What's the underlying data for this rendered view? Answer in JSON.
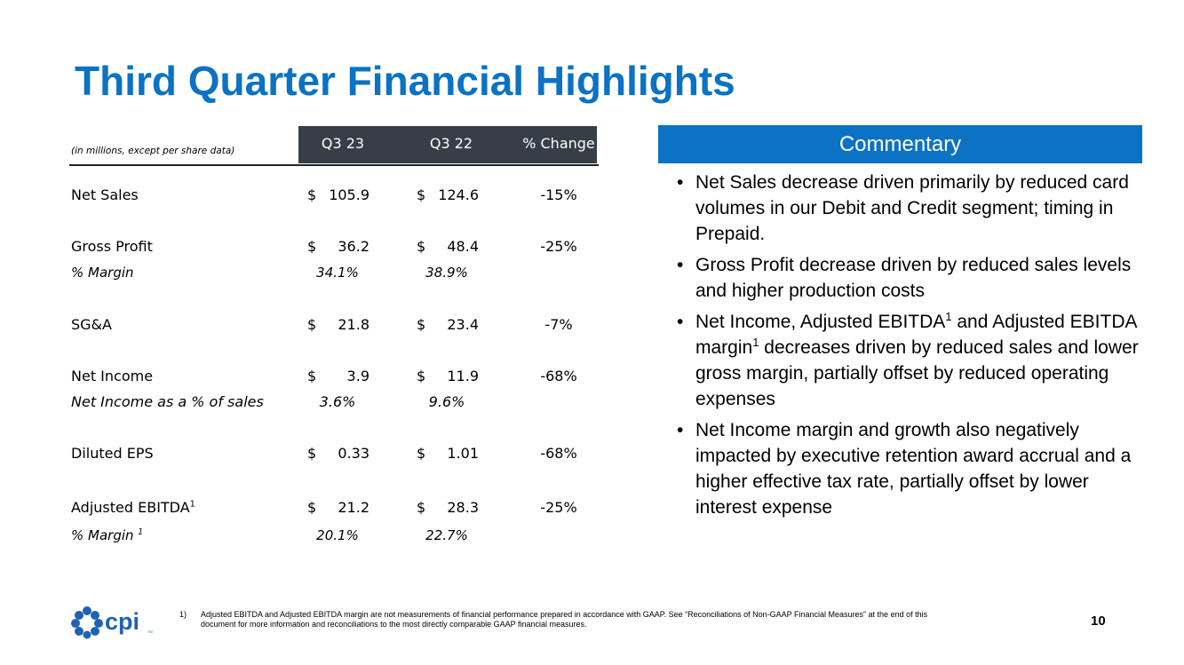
{
  "title": "Third Quarter Financial Highlights",
  "table": {
    "units_note": "(in millions, except per share data)",
    "columns": [
      "Q3 23",
      "Q3 22",
      "% Change"
    ],
    "currency_symbol": "$",
    "rows": {
      "net_sales": {
        "label": "Net Sales",
        "q3_23": "105.9",
        "q3_22": "124.6",
        "change": "-15%"
      },
      "gross_profit": {
        "label": "Gross Profit",
        "q3_23": "36.2",
        "q3_22": "48.4",
        "change": "-25%"
      },
      "gross_margin": {
        "label": "% Margin",
        "q3_23": "34.1%",
        "q3_22": "38.9%"
      },
      "sga": {
        "label": "SG&A",
        "q3_23": "21.8",
        "q3_22": "23.4",
        "change": "-7%"
      },
      "net_income": {
        "label": "Net Income",
        "q3_23": "3.9",
        "q3_22": "11.9",
        "change": "-68%"
      },
      "net_income_pct": {
        "label": "Net Income as a % of sales",
        "q3_23": "3.6%",
        "q3_22": "9.6%"
      },
      "diluted_eps": {
        "label": "Diluted EPS",
        "q3_23": "0.33",
        "q3_22": "1.01",
        "change": "-68%"
      },
      "adj_ebitda": {
        "label": "Adjusted EBITDA",
        "sup": "1",
        "q3_23": "21.2",
        "q3_22": "28.3",
        "change": "-25%"
      },
      "adj_ebitda_margin": {
        "label": "% Margin ",
        "sup": "1",
        "q3_23": "20.1%",
        "q3_22": "22.7%"
      }
    }
  },
  "commentary": {
    "header": "Commentary",
    "bullet_char": "•",
    "b1": "Net Sales decrease driven primarily by reduced card volumes in our Debit and Credit segment; timing in Prepaid.",
    "b2": "Gross Profit decrease driven by reduced sales levels and higher production costs",
    "b3_a": "Net Income, Adjusted EBITDA",
    "b3_sup1": "1",
    "b3_b": " and Adjusted EBITDA margin",
    "b3_sup2": "1",
    "b3_c": " decreases driven by reduced sales and lower gross margin, partially offset by reduced operating expenses",
    "b4": "Net Income margin and growth also negatively impacted by executive retention award accrual and a higher effective tax rate, partially offset by lower interest expense"
  },
  "footer": {
    "logo_text": "cpi",
    "logo_tm": "TM",
    "footnote_num": "1)",
    "footnote_text": "Adjusted EBITDA and Adjusted EBITDA margin are not measurements of financial performance prepared in accordance with GAAP. See “Reconciliations of Non-GAAP Financial Measures” at the end of this document for more information and reconciliations to the most directly comparable GAAP financial measures.",
    "page_number": "10"
  },
  "colors": {
    "brand_blue": "#0b72c4",
    "header_dark": "#363f48",
    "logo_blue": "#1f62b3"
  }
}
